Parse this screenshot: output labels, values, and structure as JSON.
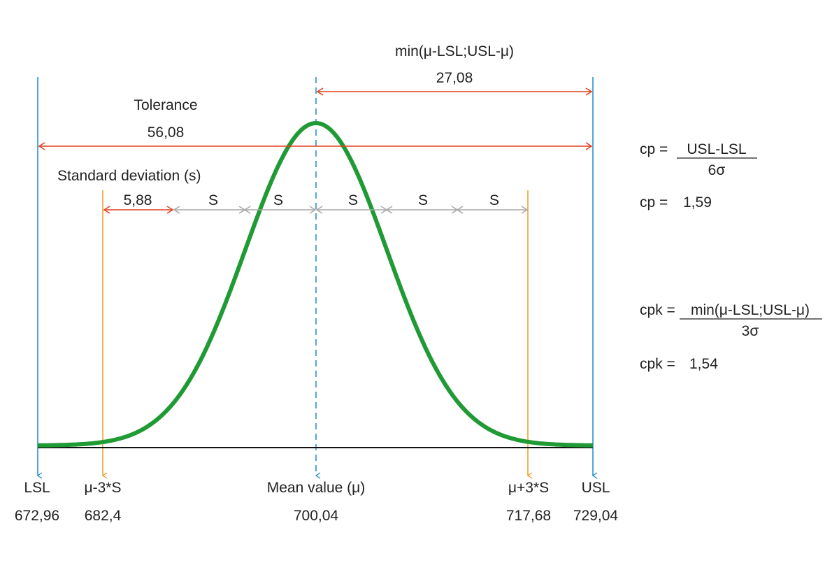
{
  "colors": {
    "limit": "#1a8ad4",
    "sigma3": "#f29a1e",
    "red": "#e2401c",
    "gray": "#a8a8a8",
    "curve": "#1f9a35",
    "axis": "#111111"
  },
  "top_span": {
    "label": "min(μ-LSL;USL-μ)",
    "value": "27,08"
  },
  "tolerance": {
    "label": "Tolerance",
    "value": "56,08"
  },
  "std_dev": {
    "label": "Standard deviation (s)",
    "value": "5,88",
    "s_label": "S"
  },
  "markers": [
    {
      "id": "lsl",
      "label": "LSL",
      "value": "672,96"
    },
    {
      "id": "minus3s",
      "label": "μ-3*S",
      "value": "682,4"
    },
    {
      "id": "mean",
      "label": "Mean value (μ)",
      "value": "700,04"
    },
    {
      "id": "plus3s",
      "label": "μ+3*S",
      "value": "717,68"
    },
    {
      "id": "usl",
      "label": "USL",
      "value": "729,04"
    }
  ],
  "formulas": {
    "cp_lhs": "cp =",
    "cp_num": "USL-LSL",
    "cp_den": "6σ",
    "cp_result_lhs": "cp =",
    "cp_result": "1,59",
    "cpk_lhs": "cpk =",
    "cpk_num": "min(μ-LSL;USL-μ)",
    "cpk_den": "3σ",
    "cpk_result_lhs": "cpk =",
    "cpk_result": "1,54"
  }
}
